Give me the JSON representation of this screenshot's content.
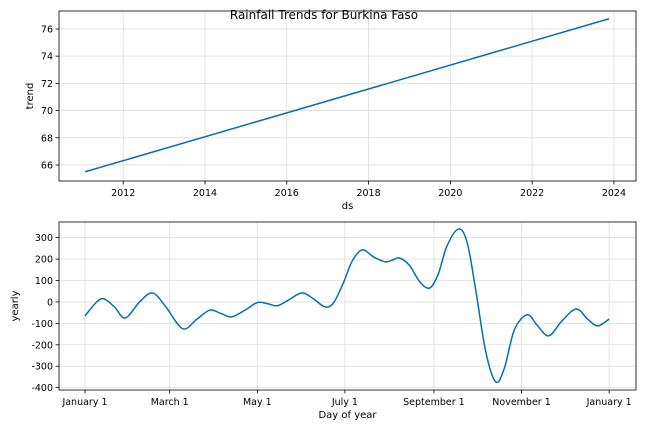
{
  "chart_data": [
    {
      "type": "line",
      "title": "Rainfall Trends for Burkina Faso",
      "x_label": "ds",
      "y_label": "trend",
      "x": [
        2011.07,
        2023.88
      ],
      "series": [
        {
          "color": "#0072B2",
          "values": [
            65.5,
            76.75
          ]
        }
      ],
      "xlim": [
        2010.43,
        2024.54
      ],
      "xticks": [
        2012,
        2014,
        2016,
        2018,
        2020,
        2022,
        2024
      ],
      "ylim": [
        64.82,
        77.32
      ],
      "yticks": [
        66,
        68,
        70,
        72,
        74,
        76
      ],
      "grid": true
    },
    {
      "type": "line",
      "x_label": "Day of year",
      "y_label": "yearly",
      "x": [
        0,
        11,
        20,
        28,
        38,
        47,
        56,
        68,
        78,
        87,
        95,
        102,
        111,
        120,
        127,
        134,
        142,
        151,
        159,
        167,
        173,
        180,
        186,
        193,
        201,
        209,
        214,
        219,
        226,
        233,
        240,
        246,
        252,
        260,
        266,
        272,
        279,
        286,
        292,
        299,
        308,
        315,
        323,
        332,
        342,
        350,
        357,
        365
      ],
      "series": [
        {
          "color": "#0072B2",
          "values": [
            -65,
            14,
            -20,
            -75,
            0,
            42,
            -20,
            -125,
            -80,
            -38,
            -55,
            -70,
            -40,
            -3,
            -8,
            -18,
            10,
            42,
            15,
            -23,
            -5,
            90,
            190,
            243,
            210,
            187,
            195,
            205,
            170,
            95,
            65,
            130,
            260,
            340,
            280,
            60,
            -230,
            -373,
            -310,
            -130,
            -60,
            -110,
            -158,
            -90,
            -33,
            -80,
            -112,
            -80
          ]
        }
      ],
      "xlim": [
        -18.1,
        383.7
      ],
      "xticks": [
        {
          "value": 0,
          "label": "January 1"
        },
        {
          "value": 59,
          "label": "March 1"
        },
        {
          "value": 120,
          "label": "May 1"
        },
        {
          "value": 181,
          "label": "July 1"
        },
        {
          "value": 243,
          "label": "September 1"
        },
        {
          "value": 304,
          "label": "November 1"
        },
        {
          "value": 365,
          "label": "January 1"
        }
      ],
      "ylim": [
        -411,
        373
      ],
      "yticks": [
        -400,
        -300,
        -200,
        -100,
        0,
        100,
        200,
        300
      ],
      "grid": true
    }
  ]
}
